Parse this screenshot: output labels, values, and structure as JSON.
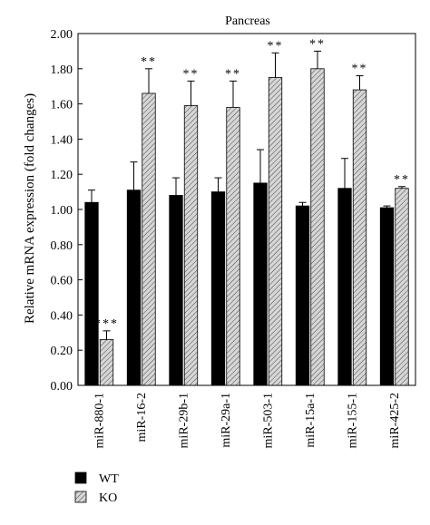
{
  "chart_data": {
    "type": "bar",
    "title": "Pancreas",
    "ylabel": "Relative mRNA expression (fold changes)",
    "xlabel": "",
    "ylim": [
      0,
      2.0
    ],
    "yticks": [
      "0.00",
      "0.20",
      "0.40",
      "0.60",
      "0.80",
      "1.00",
      "1.20",
      "1.40",
      "1.60",
      "1.80",
      "2.00"
    ],
    "categories": [
      "miR-880-1",
      "miR-16-2",
      "miR-29b-1",
      "miR-29a-1",
      "miR-503-1",
      "miR-15a-1",
      "miR-155-1",
      "miR-425-2"
    ],
    "series": [
      {
        "name": "WT",
        "color": "#000000",
        "pattern": "solid",
        "values": [
          1.04,
          1.11,
          1.08,
          1.1,
          1.15,
          1.02,
          1.12,
          1.01
        ],
        "errors": [
          0.07,
          0.16,
          0.1,
          0.08,
          0.19,
          0.02,
          0.17,
          0.01
        ]
      },
      {
        "name": "KO",
        "color": "#c8c8c8",
        "pattern": "hatched",
        "values": [
          0.26,
          1.66,
          1.59,
          1.58,
          1.75,
          1.8,
          1.68,
          1.12
        ],
        "errors": [
          0.05,
          0.14,
          0.14,
          0.15,
          0.14,
          0.1,
          0.08,
          0.01
        ]
      }
    ],
    "annotations": [
      "***",
      "**",
      "**",
      "**",
      "**",
      "**",
      "**",
      "**"
    ],
    "legend_position": "bottom-left",
    "grid": false
  }
}
